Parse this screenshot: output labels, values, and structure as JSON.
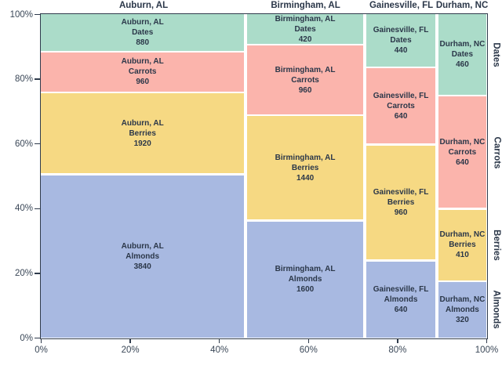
{
  "chart_data": {
    "type": "mosaic",
    "title": "",
    "xlabel": "",
    "ylabel": "",
    "columns": [
      "Auburn, AL",
      "Birmingham, AL",
      "Gainesville, FL",
      "Durham, NC"
    ],
    "rows_bottom_to_top": [
      "Almonds",
      "Berries",
      "Carrots",
      "Dates"
    ],
    "values": {
      "Auburn, AL": {
        "Almonds": 3840,
        "Berries": 1920,
        "Carrots": 960,
        "Dates": 880
      },
      "Birmingham, AL": {
        "Almonds": 1600,
        "Berries": 1440,
        "Carrots": 960,
        "Dates": 420
      },
      "Gainesville, FL": {
        "Almonds": 640,
        "Berries": 960,
        "Carrots": 640,
        "Dates": 440
      },
      "Durham, NC": {
        "Almonds": 320,
        "Berries": 410,
        "Carrots": 640,
        "Dates": 460
      }
    },
    "cell_label_lines": [
      "column",
      "row",
      "value"
    ],
    "colors": {
      "Almonds": "#a8b9e1",
      "Berries": "#f6d983",
      "Carrots": "#fbb4ac",
      "Dates": "#abdcc9"
    },
    "x_axis": {
      "ticks": [
        "0%",
        "20%",
        "40%",
        "60%",
        "80%",
        "100%"
      ],
      "range": [
        0,
        100
      ]
    },
    "y_axis": {
      "ticks": [
        "0%",
        "20%",
        "40%",
        "60%",
        "80%",
        "100%"
      ],
      "range": [
        0,
        100
      ]
    },
    "right_axis_labels_top_to_bottom": [
      "Dates",
      "Carrots",
      "Berries",
      "Almonds"
    ],
    "legend": "none",
    "grid": "off",
    "text_color": "#2b3749",
    "axis_color": "#2f3b4c",
    "tick_label_color": "#3a4757",
    "background_color": "#ffffff"
  }
}
